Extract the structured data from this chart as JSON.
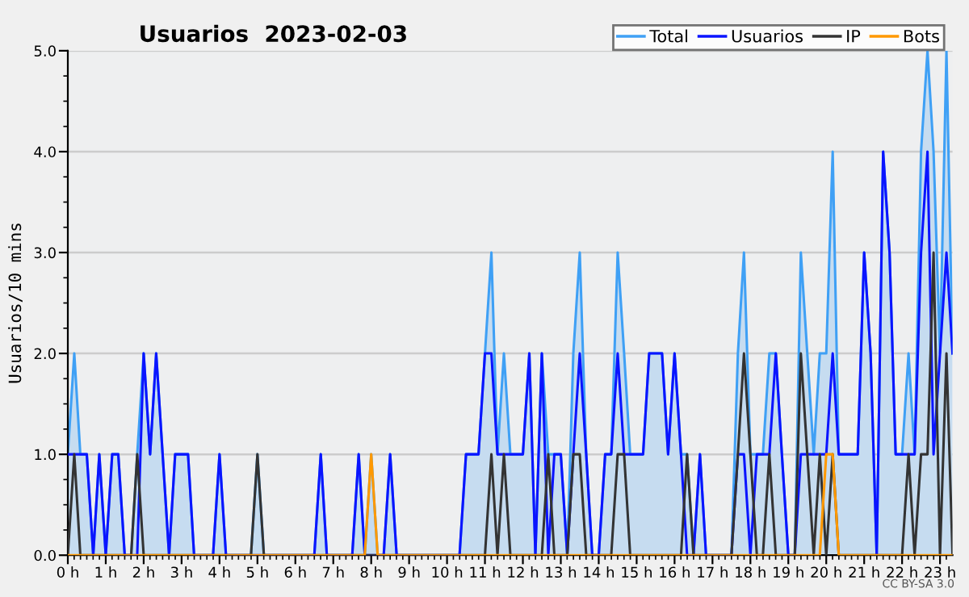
{
  "chart_data": {
    "type": "line",
    "title": "Usuarios  2023-02-03",
    "ylabel": "Usuarios/10 mins",
    "annotations": [
      "CC BY-SA 3.0"
    ],
    "x": [
      0,
      0.17,
      0.33,
      0.5,
      0.67,
      0.83,
      1,
      1.17,
      1.33,
      1.5,
      1.67,
      1.83,
      2,
      2.17,
      2.33,
      2.5,
      2.67,
      2.83,
      3,
      3.17,
      3.33,
      3.5,
      3.67,
      3.83,
      4,
      4.17,
      4.33,
      4.5,
      4.67,
      4.83,
      5,
      5.17,
      5.33,
      5.5,
      5.67,
      5.83,
      6,
      6.17,
      6.33,
      6.5,
      6.67,
      6.83,
      7,
      7.17,
      7.33,
      7.5,
      7.67,
      7.83,
      8,
      8.17,
      8.33,
      8.5,
      8.67,
      8.83,
      9,
      9.17,
      9.33,
      9.5,
      9.67,
      9.83,
      10,
      10.17,
      10.33,
      10.5,
      10.67,
      10.83,
      11,
      11.17,
      11.33,
      11.5,
      11.67,
      11.83,
      12,
      12.17,
      12.33,
      12.5,
      12.67,
      12.83,
      13,
      13.17,
      13.33,
      13.5,
      13.67,
      13.83,
      14,
      14.17,
      14.33,
      14.5,
      14.67,
      14.83,
      15,
      15.17,
      15.33,
      15.5,
      15.67,
      15.83,
      16,
      16.17,
      16.33,
      16.5,
      16.67,
      16.83,
      17,
      17.17,
      17.33,
      17.5,
      17.67,
      17.83,
      18,
      18.17,
      18.33,
      18.5,
      18.67,
      18.83,
      19,
      19.17,
      19.33,
      19.5,
      19.67,
      19.83,
      20,
      20.17,
      20.33,
      20.5,
      20.67,
      20.83,
      21,
      21.17,
      21.33,
      21.5,
      21.67,
      21.83,
      22,
      22.17,
      22.33,
      22.5,
      22.67,
      22.83,
      23,
      23.17,
      23.33
    ],
    "series": [
      {
        "name": "Total",
        "type": "area",
        "color": "#3fa0f5",
        "values": [
          1,
          2,
          1,
          1,
          0,
          1,
          0,
          1,
          1,
          0,
          0,
          1,
          2,
          1,
          2,
          1,
          0,
          1,
          1,
          1,
          0,
          0,
          0,
          0,
          1,
          0,
          0,
          0,
          0,
          0,
          1,
          0,
          0,
          0,
          0,
          0,
          0,
          0,
          0,
          0,
          1,
          0,
          0,
          0,
          0,
          0,
          1,
          0,
          1,
          0,
          0,
          1,
          0,
          0,
          0,
          0,
          0,
          0,
          0,
          0,
          0,
          0,
          0,
          1,
          1,
          1,
          2,
          3,
          1,
          2,
          1,
          1,
          1,
          2,
          0,
          2,
          1,
          1,
          1,
          0,
          2,
          3,
          1,
          0,
          0,
          1,
          1,
          3,
          2,
          1,
          1,
          1,
          2,
          2,
          2,
          1,
          2,
          1,
          1,
          0,
          1,
          0,
          0,
          0,
          0,
          0,
          2,
          3,
          1,
          1,
          1,
          2,
          2,
          1,
          0,
          0,
          3,
          2,
          1,
          2,
          2,
          4,
          1,
          1,
          1,
          1,
          3,
          2,
          0,
          4,
          3,
          1,
          1,
          2,
          1,
          4,
          5,
          4,
          2,
          5,
          2
        ]
      },
      {
        "name": "Usuarios",
        "color": "#0a14ff",
        "values": [
          1,
          1,
          1,
          1,
          0,
          1,
          0,
          1,
          1,
          0,
          0,
          0,
          2,
          1,
          2,
          1,
          0,
          1,
          1,
          1,
          0,
          0,
          0,
          0,
          1,
          0,
          0,
          0,
          0,
          0,
          0,
          0,
          0,
          0,
          0,
          0,
          0,
          0,
          0,
          0,
          1,
          0,
          0,
          0,
          0,
          0,
          1,
          0,
          0,
          0,
          0,
          1,
          0,
          0,
          0,
          0,
          0,
          0,
          0,
          0,
          0,
          0,
          0,
          1,
          1,
          1,
          2,
          2,
          1,
          1,
          1,
          1,
          1,
          2,
          0,
          2,
          0,
          1,
          1,
          0,
          1,
          2,
          1,
          0,
          0,
          1,
          1,
          2,
          1,
          1,
          1,
          1,
          2,
          2,
          2,
          1,
          2,
          1,
          0,
          0,
          1,
          0,
          0,
          0,
          0,
          0,
          1,
          1,
          0,
          1,
          1,
          1,
          2,
          1,
          0,
          0,
          1,
          1,
          1,
          1,
          1,
          2,
          1,
          1,
          1,
          1,
          3,
          2,
          0,
          4,
          3,
          1,
          1,
          1,
          1,
          3,
          4,
          1,
          2,
          3,
          2
        ]
      },
      {
        "name": "IP",
        "color": "#333333",
        "values": [
          0,
          1,
          0,
          0,
          0,
          0,
          0,
          0,
          0,
          0,
          0,
          1,
          0,
          0,
          0,
          0,
          0,
          0,
          0,
          0,
          0,
          0,
          0,
          0,
          0,
          0,
          0,
          0,
          0,
          0,
          1,
          0,
          0,
          0,
          0,
          0,
          0,
          0,
          0,
          0,
          0,
          0,
          0,
          0,
          0,
          0,
          0,
          0,
          0,
          0,
          0,
          0,
          0,
          0,
          0,
          0,
          0,
          0,
          0,
          0,
          0,
          0,
          0,
          0,
          0,
          0,
          0,
          1,
          0,
          1,
          0,
          0,
          0,
          0,
          0,
          0,
          1,
          0,
          0,
          0,
          1,
          1,
          0,
          0,
          0,
          0,
          0,
          1,
          1,
          0,
          0,
          0,
          0,
          0,
          0,
          0,
          0,
          0,
          1,
          0,
          0,
          0,
          0,
          0,
          0,
          0,
          1,
          2,
          1,
          0,
          0,
          1,
          0,
          0,
          0,
          0,
          2,
          1,
          0,
          1,
          0,
          1,
          0,
          0,
          0,
          0,
          0,
          0,
          0,
          0,
          0,
          0,
          0,
          1,
          0,
          1,
          1,
          3,
          0,
          2,
          0
        ]
      },
      {
        "name": "Bots",
        "color": "#ff9900",
        "values": [
          0,
          0,
          0,
          0,
          0,
          0,
          0,
          0,
          0,
          0,
          0,
          0,
          0,
          0,
          0,
          0,
          0,
          0,
          0,
          0,
          0,
          0,
          0,
          0,
          0,
          0,
          0,
          0,
          0,
          0,
          0,
          0,
          0,
          0,
          0,
          0,
          0,
          0,
          0,
          0,
          0,
          0,
          0,
          0,
          0,
          0,
          0,
          0,
          1,
          0,
          0,
          0,
          0,
          0,
          0,
          0,
          0,
          0,
          0,
          0,
          0,
          0,
          0,
          0,
          0,
          0,
          0,
          0,
          0,
          0,
          0,
          0,
          0,
          0,
          0,
          0,
          0,
          0,
          0,
          0,
          0,
          0,
          0,
          0,
          0,
          0,
          0,
          0,
          0,
          0,
          0,
          0,
          0,
          0,
          0,
          0,
          0,
          0,
          0,
          0,
          0,
          0,
          0,
          0,
          0,
          0,
          0,
          0,
          0,
          0,
          0,
          0,
          0,
          0,
          0,
          0,
          0,
          0,
          0,
          0,
          1,
          1,
          0,
          0,
          0,
          0,
          0,
          0,
          0,
          0,
          0,
          0,
          0,
          0,
          0,
          0,
          0,
          0,
          0,
          0,
          0
        ]
      }
    ],
    "xlim": [
      0,
      23.33
    ],
    "xticks": [
      {
        "value": 0,
        "label": "0 h"
      },
      {
        "value": 1,
        "label": "1 h"
      },
      {
        "value": 2,
        "label": "2 h"
      },
      {
        "value": 3,
        "label": "3 h"
      },
      {
        "value": 4,
        "label": "4 h"
      },
      {
        "value": 5,
        "label": "5 h"
      },
      {
        "value": 6,
        "label": "6 h"
      },
      {
        "value": 7,
        "label": "7 h"
      },
      {
        "value": 8,
        "label": "8 h"
      },
      {
        "value": 9,
        "label": "9 h"
      },
      {
        "value": 10,
        "label": "10 h"
      },
      {
        "value": 11,
        "label": "11 h"
      },
      {
        "value": 12,
        "label": "12 h"
      },
      {
        "value": 13,
        "label": "13 h"
      },
      {
        "value": 14,
        "label": "14 h"
      },
      {
        "value": 15,
        "label": "15 h"
      },
      {
        "value": 16,
        "label": "16 h"
      },
      {
        "value": 17,
        "label": "17 h"
      },
      {
        "value": 18,
        "label": "18 h"
      },
      {
        "value": 19,
        "label": "19 h"
      },
      {
        "value": 20,
        "label": "20 h"
      },
      {
        "value": 21,
        "label": "21 h"
      },
      {
        "value": 22,
        "label": "22 h"
      },
      {
        "value": 23,
        "label": "23 h"
      }
    ],
    "ylim": [
      0,
      5
    ],
    "yticks": [
      {
        "value": 0,
        "label": "0.0"
      },
      {
        "value": 1,
        "label": "1.0"
      },
      {
        "value": 2,
        "label": "2.0"
      },
      {
        "value": 3,
        "label": "3.0"
      },
      {
        "value": 4,
        "label": "4.0"
      },
      {
        "value": 5,
        "label": "5.0"
      }
    ],
    "grid": "y",
    "legend": "top right"
  }
}
